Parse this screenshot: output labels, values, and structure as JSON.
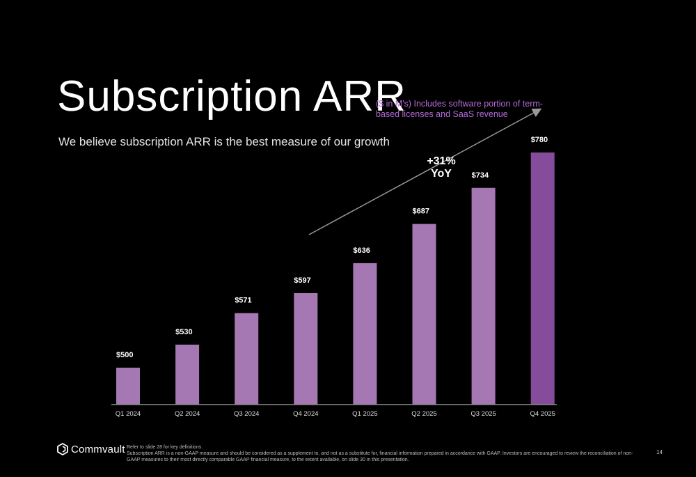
{
  "slide": {
    "title": "Subscription ARR",
    "subtitle": "We believe subscription ARR is the best measure of our growth",
    "note": "($ in M's) Includes software portion of term-based licenses and SaaS revenue",
    "growth_line1": "+31%",
    "growth_line2": "YoY",
    "logo_text": "Commvault",
    "footnote_line1": "Refer to slide 28 for key definitions.",
    "footnote_line2": "Subscription ARR is a non-GAAP measure and should be considered as a supplement to, and not as a substitute for, financial information prepared in accordance with GAAP. Investors are encouraged to review the reconciliation of non-GAAP measures to their most directly comparable GAAP financial measure, to the extent available, on slide 30 in this presentation.",
    "page_number": "14"
  },
  "colors": {
    "bar": "#a678b3",
    "bar_highlight": "#864c9c",
    "axis": "#8a8a8a",
    "arrow": "#9a9a9a"
  },
  "chart_data": {
    "type": "bar",
    "categories": [
      "Q1 2024",
      "Q2 2024",
      "Q3 2024",
      "Q4 2024",
      "Q1 2025",
      "Q2 2025",
      "Q3 2025",
      "Q4 2025"
    ],
    "values": [
      500,
      530,
      571,
      597,
      636,
      687,
      734,
      780
    ],
    "labels": [
      "$500",
      "$530",
      "$571",
      "$597",
      "$636",
      "$687",
      "$734",
      "$780"
    ],
    "highlight_index": 7,
    "title": "Subscription ARR",
    "unit": "$M"
  }
}
